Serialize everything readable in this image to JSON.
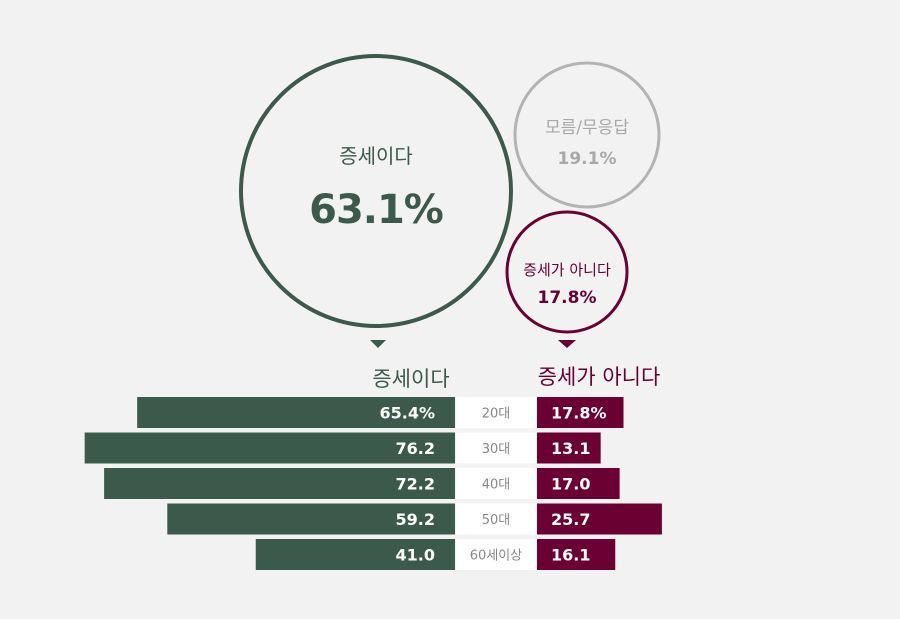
{
  "colors": {
    "yes": "#3c5a4c",
    "no": "#6b0033",
    "unknown": "#b3b3b3",
    "age_box": "#ffffff",
    "background": "#f2f2f2"
  },
  "bubbles": {
    "yes": {
      "label": "증세이다",
      "value": "63.1%"
    },
    "unknown": {
      "label": "모름/무응답",
      "value": "19.1%"
    },
    "no": {
      "label": "증세가 아니다",
      "value": "17.8%"
    }
  },
  "headers": {
    "yes": "증세이다",
    "no": "증세가 아니다"
  },
  "chart_data": {
    "type": "bar",
    "categories": [
      "20대",
      "30대",
      "40대",
      "50대",
      "60세이상"
    ],
    "series": [
      {
        "name": "증세이다",
        "values": [
          65.4,
          76.2,
          72.2,
          59.2,
          41.0
        ],
        "labels": [
          "65.4%",
          "76.2",
          "72.2",
          "59.2",
          "41.0"
        ]
      },
      {
        "name": "증세가 아니다",
        "values": [
          17.8,
          13.1,
          17.0,
          25.7,
          16.1
        ],
        "labels": [
          "17.8%",
          "13.1",
          "17.0",
          "25.7",
          "16.1"
        ]
      }
    ],
    "overall": [
      {
        "name": "증세이다",
        "value": 63.1
      },
      {
        "name": "모름/무응답",
        "value": 19.1
      },
      {
        "name": "증세가 아니다",
        "value": 17.8
      }
    ]
  }
}
